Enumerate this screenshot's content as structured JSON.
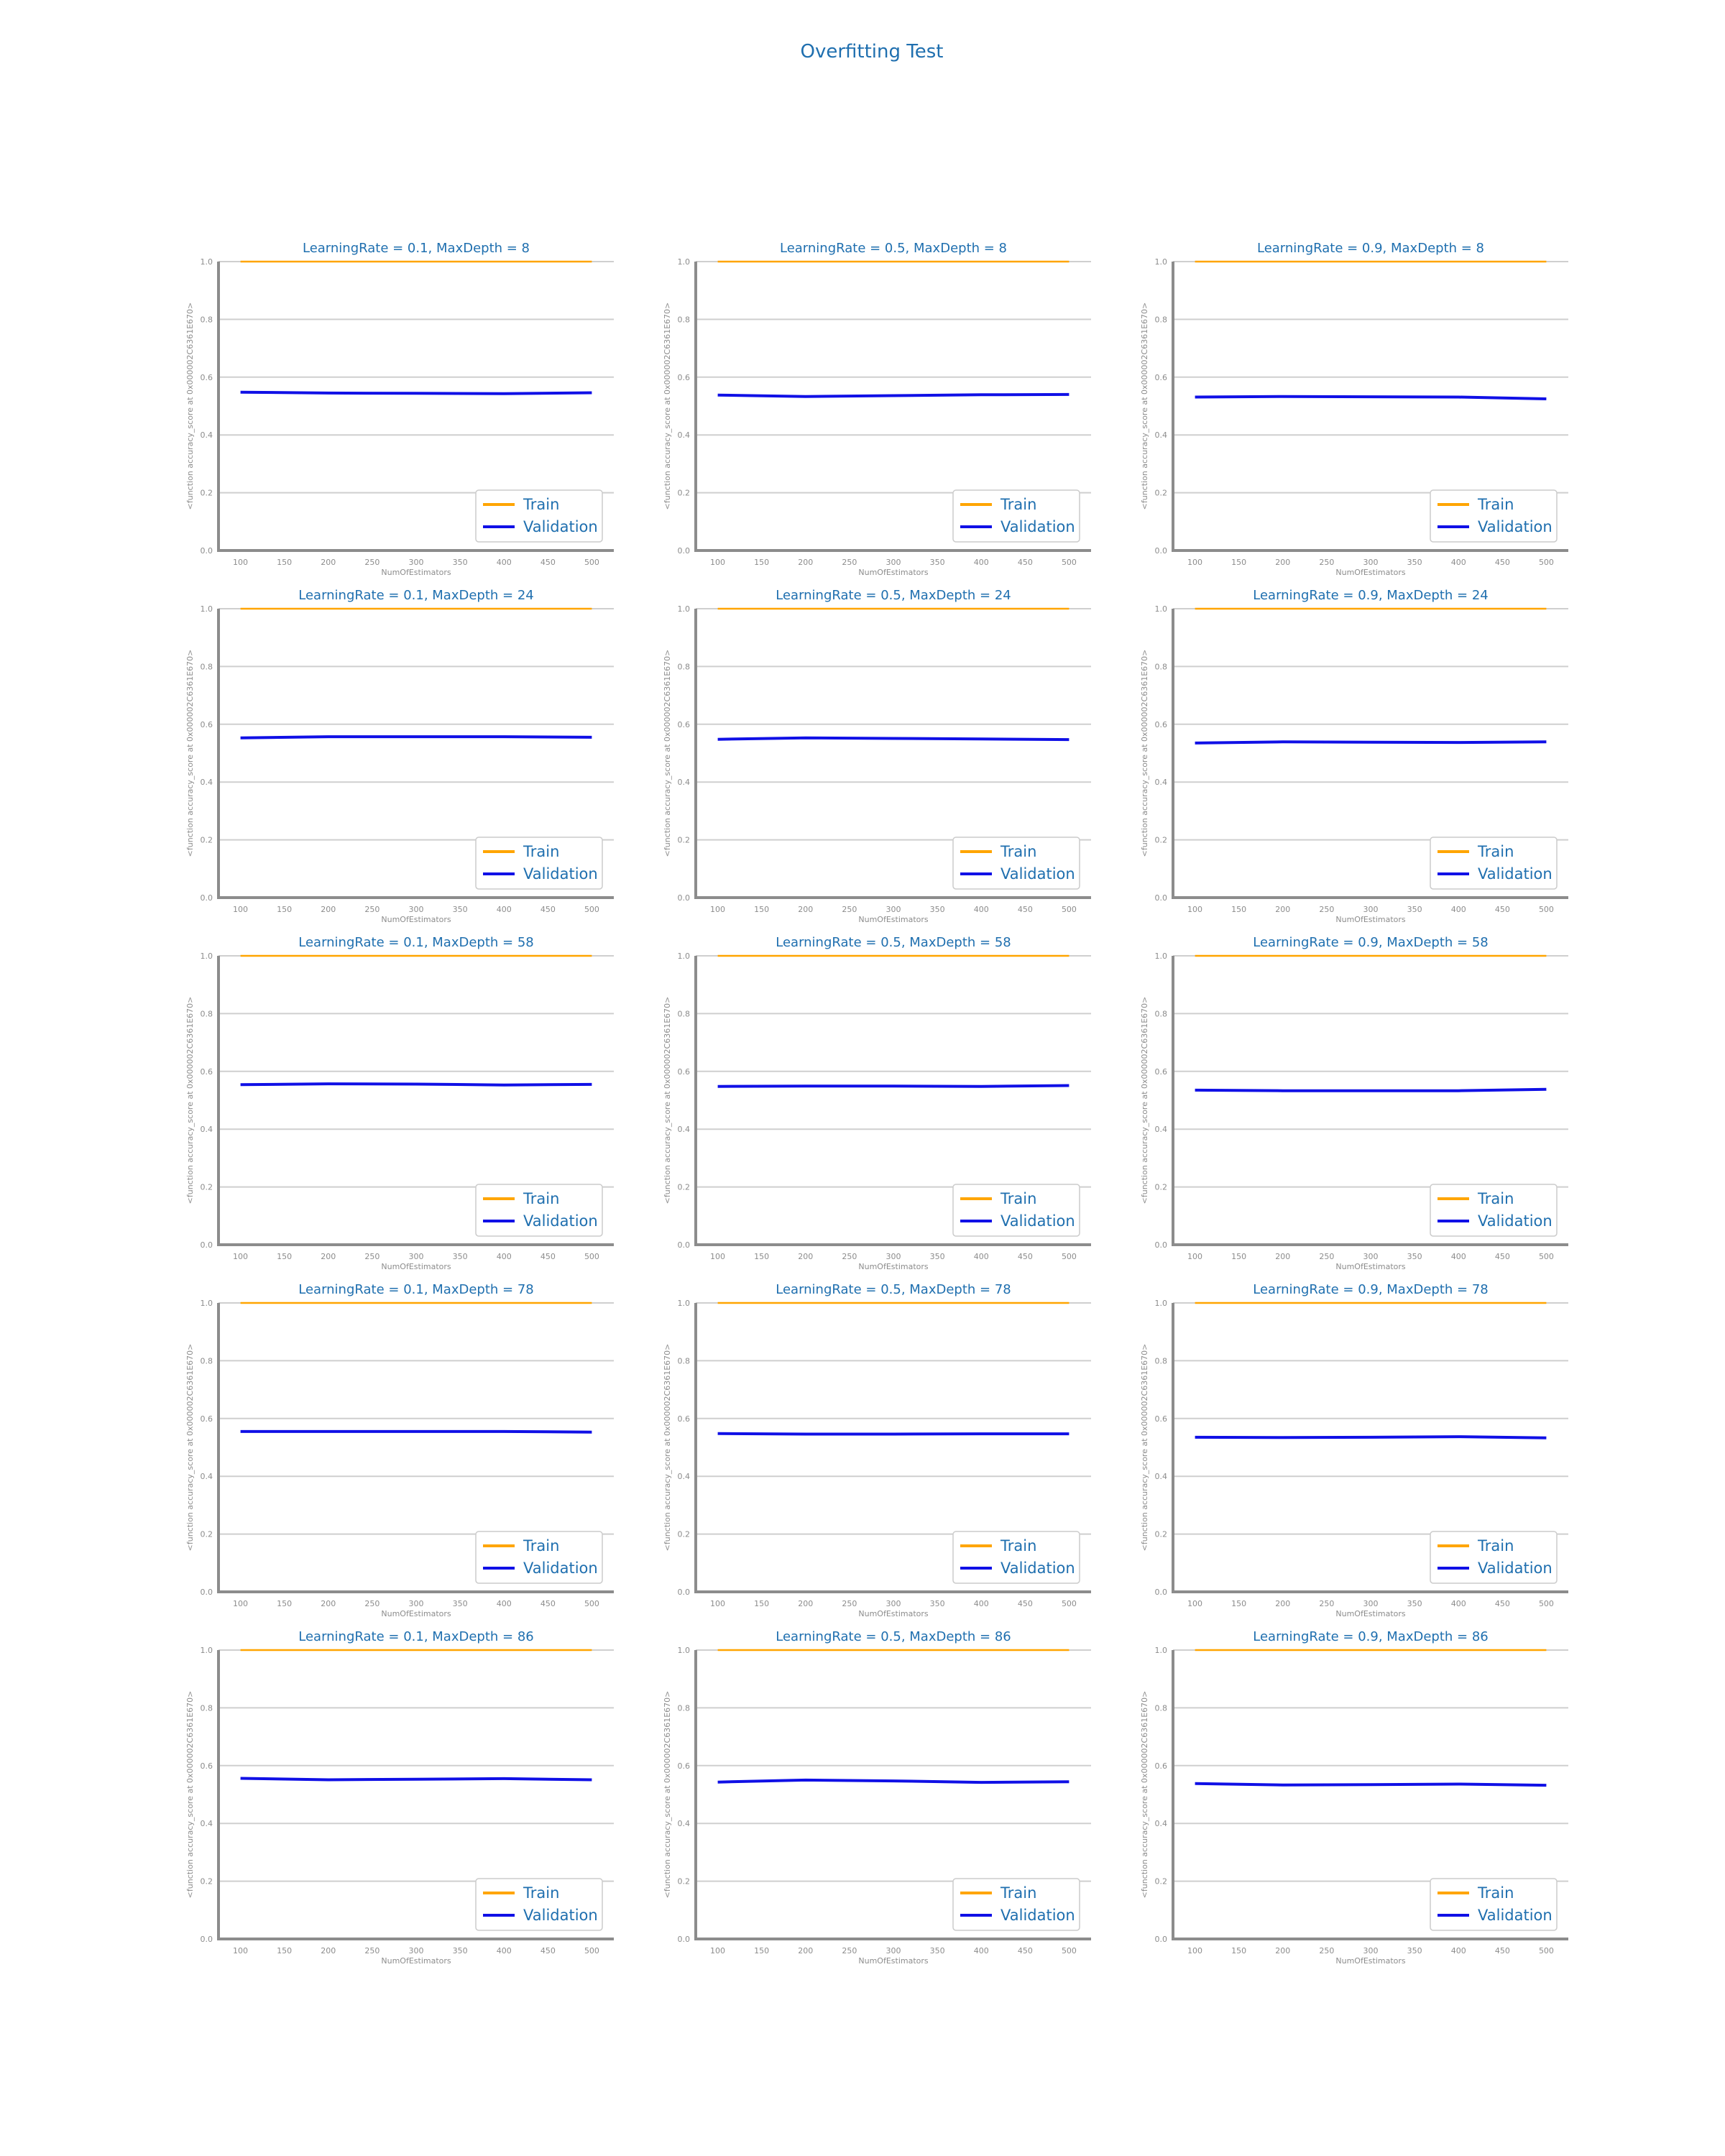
{
  "figure": {
    "suptitle": "Overfitting Test"
  },
  "colors": {
    "train": "#ffa500",
    "validation": "#1010e6",
    "title_text": "#1f6faf",
    "axis": "#8c8c8c",
    "grid": "#cfcfcf"
  },
  "chart_data": [
    {
      "type": "line",
      "title": "LearningRate = 0.1, MaxDepth = 8",
      "xlabel": "NumOfEstimators",
      "ylabel": "<function accuracy_score at 0x000002C6361E670>",
      "x": [
        100,
        200,
        300,
        400,
        500
      ],
      "xticks": [
        100,
        150,
        200,
        250,
        300,
        350,
        400,
        450,
        500
      ],
      "yticks": [
        0.0,
        0.2,
        0.4,
        0.6,
        0.8,
        1.0
      ],
      "ylim": [
        0,
        1
      ],
      "grid": true,
      "legend": "lower-right",
      "series": [
        {
          "name": "Train",
          "color": "#ffa500",
          "values": [
            1.0,
            1.0,
            1.0,
            1.0,
            1.0
          ]
        },
        {
          "name": "Validation",
          "color": "#1010e6",
          "values": [
            0.548,
            0.545,
            0.544,
            0.543,
            0.546
          ]
        }
      ]
    },
    {
      "type": "line",
      "title": "LearningRate = 0.5, MaxDepth = 8",
      "xlabel": "NumOfEstimators",
      "ylabel": "<function accuracy_score at 0x000002C6361E670>",
      "x": [
        100,
        200,
        300,
        400,
        500
      ],
      "xticks": [
        100,
        150,
        200,
        250,
        300,
        350,
        400,
        450,
        500
      ],
      "yticks": [
        0.0,
        0.2,
        0.4,
        0.6,
        0.8,
        1.0
      ],
      "ylim": [
        0,
        1
      ],
      "grid": true,
      "legend": "lower-right",
      "series": [
        {
          "name": "Train",
          "color": "#ffa500",
          "values": [
            1.0,
            1.0,
            1.0,
            1.0,
            1.0
          ]
        },
        {
          "name": "Validation",
          "color": "#1010e6",
          "values": [
            0.538,
            0.533,
            0.536,
            0.539,
            0.54
          ]
        }
      ]
    },
    {
      "type": "line",
      "title": "LearningRate = 0.9, MaxDepth = 8",
      "xlabel": "NumOfEstimators",
      "ylabel": "<function accuracy_score at 0x000002C6361E670>",
      "x": [
        100,
        200,
        300,
        400,
        500
      ],
      "xticks": [
        100,
        150,
        200,
        250,
        300,
        350,
        400,
        450,
        500
      ],
      "yticks": [
        0.0,
        0.2,
        0.4,
        0.6,
        0.8,
        1.0
      ],
      "ylim": [
        0,
        1
      ],
      "grid": true,
      "legend": "lower-right",
      "series": [
        {
          "name": "Train",
          "color": "#ffa500",
          "values": [
            1.0,
            1.0,
            1.0,
            1.0,
            1.0
          ]
        },
        {
          "name": "Validation",
          "color": "#1010e6",
          "values": [
            0.531,
            0.533,
            0.532,
            0.531,
            0.525
          ]
        }
      ]
    },
    {
      "type": "line",
      "title": "LearningRate = 0.1, MaxDepth = 24",
      "xlabel": "NumOfEstimators",
      "ylabel": "<function accuracy_score at 0x000002C6361E670>",
      "x": [
        100,
        200,
        300,
        400,
        500
      ],
      "xticks": [
        100,
        150,
        200,
        250,
        300,
        350,
        400,
        450,
        500
      ],
      "yticks": [
        0.0,
        0.2,
        0.4,
        0.6,
        0.8,
        1.0
      ],
      "ylim": [
        0,
        1
      ],
      "grid": true,
      "legend": "lower-right",
      "series": [
        {
          "name": "Train",
          "color": "#ffa500",
          "values": [
            1.0,
            1.0,
            1.0,
            1.0,
            1.0
          ]
        },
        {
          "name": "Validation",
          "color": "#1010e6",
          "values": [
            0.553,
            0.557,
            0.557,
            0.557,
            0.555
          ]
        }
      ]
    },
    {
      "type": "line",
      "title": "LearningRate = 0.5, MaxDepth = 24",
      "xlabel": "NumOfEstimators",
      "ylabel": "<function accuracy_score at 0x000002C6361E670>",
      "x": [
        100,
        200,
        300,
        400,
        500
      ],
      "xticks": [
        100,
        150,
        200,
        250,
        300,
        350,
        400,
        450,
        500
      ],
      "yticks": [
        0.0,
        0.2,
        0.4,
        0.6,
        0.8,
        1.0
      ],
      "ylim": [
        0,
        1
      ],
      "grid": true,
      "legend": "lower-right",
      "series": [
        {
          "name": "Train",
          "color": "#ffa500",
          "values": [
            1.0,
            1.0,
            1.0,
            1.0,
            1.0
          ]
        },
        {
          "name": "Validation",
          "color": "#1010e6",
          "values": [
            0.548,
            0.553,
            0.551,
            0.549,
            0.547
          ]
        }
      ]
    },
    {
      "type": "line",
      "title": "LearningRate = 0.9, MaxDepth = 24",
      "xlabel": "NumOfEstimators",
      "ylabel": "<function accuracy_score at 0x000002C6361E670>",
      "x": [
        100,
        200,
        300,
        400,
        500
      ],
      "xticks": [
        100,
        150,
        200,
        250,
        300,
        350,
        400,
        450,
        500
      ],
      "yticks": [
        0.0,
        0.2,
        0.4,
        0.6,
        0.8,
        1.0
      ],
      "ylim": [
        0,
        1
      ],
      "grid": true,
      "legend": "lower-right",
      "series": [
        {
          "name": "Train",
          "color": "#ffa500",
          "values": [
            1.0,
            1.0,
            1.0,
            1.0,
            1.0
          ]
        },
        {
          "name": "Validation",
          "color": "#1010e6",
          "values": [
            0.535,
            0.539,
            0.538,
            0.537,
            0.539
          ]
        }
      ]
    },
    {
      "type": "line",
      "title": "LearningRate = 0.1, MaxDepth = 58",
      "xlabel": "NumOfEstimators",
      "ylabel": "<function accuracy_score at 0x000002C6361E670>",
      "x": [
        100,
        200,
        300,
        400,
        500
      ],
      "xticks": [
        100,
        150,
        200,
        250,
        300,
        350,
        400,
        450,
        500
      ],
      "yticks": [
        0.0,
        0.2,
        0.4,
        0.6,
        0.8,
        1.0
      ],
      "ylim": [
        0,
        1
      ],
      "grid": true,
      "legend": "lower-right",
      "series": [
        {
          "name": "Train",
          "color": "#ffa500",
          "values": [
            1.0,
            1.0,
            1.0,
            1.0,
            1.0
          ]
        },
        {
          "name": "Validation",
          "color": "#1010e6",
          "values": [
            0.554,
            0.557,
            0.556,
            0.553,
            0.555
          ]
        }
      ]
    },
    {
      "type": "line",
      "title": "LearningRate = 0.5, MaxDepth = 58",
      "xlabel": "NumOfEstimators",
      "ylabel": "<function accuracy_score at 0x000002C6361E670>",
      "x": [
        100,
        200,
        300,
        400,
        500
      ],
      "xticks": [
        100,
        150,
        200,
        250,
        300,
        350,
        400,
        450,
        500
      ],
      "yticks": [
        0.0,
        0.2,
        0.4,
        0.6,
        0.8,
        1.0
      ],
      "ylim": [
        0,
        1
      ],
      "grid": true,
      "legend": "lower-right",
      "series": [
        {
          "name": "Train",
          "color": "#ffa500",
          "values": [
            1.0,
            1.0,
            1.0,
            1.0,
            1.0
          ]
        },
        {
          "name": "Validation",
          "color": "#1010e6",
          "values": [
            0.548,
            0.549,
            0.549,
            0.548,
            0.551
          ]
        }
      ]
    },
    {
      "type": "line",
      "title": "LearningRate = 0.9, MaxDepth = 58",
      "xlabel": "NumOfEstimators",
      "ylabel": "<function accuracy_score at 0x000002C6361E670>",
      "x": [
        100,
        200,
        300,
        400,
        500
      ],
      "xticks": [
        100,
        150,
        200,
        250,
        300,
        350,
        400,
        450,
        500
      ],
      "yticks": [
        0.0,
        0.2,
        0.4,
        0.6,
        0.8,
        1.0
      ],
      "ylim": [
        0,
        1
      ],
      "grid": true,
      "legend": "lower-right",
      "series": [
        {
          "name": "Train",
          "color": "#ffa500",
          "values": [
            1.0,
            1.0,
            1.0,
            1.0,
            1.0
          ]
        },
        {
          "name": "Validation",
          "color": "#1010e6",
          "values": [
            0.535,
            0.533,
            0.533,
            0.533,
            0.538
          ]
        }
      ]
    },
    {
      "type": "line",
      "title": "LearningRate = 0.1, MaxDepth = 78",
      "xlabel": "NumOfEstimators",
      "ylabel": "<function accuracy_score at 0x000002C6361E670>",
      "x": [
        100,
        200,
        300,
        400,
        500
      ],
      "xticks": [
        100,
        150,
        200,
        250,
        300,
        350,
        400,
        450,
        500
      ],
      "yticks": [
        0.0,
        0.2,
        0.4,
        0.6,
        0.8,
        1.0
      ],
      "ylim": [
        0,
        1
      ],
      "grid": true,
      "legend": "lower-right",
      "series": [
        {
          "name": "Train",
          "color": "#ffa500",
          "values": [
            1.0,
            1.0,
            1.0,
            1.0,
            1.0
          ]
        },
        {
          "name": "Validation",
          "color": "#1010e6",
          "values": [
            0.555,
            0.555,
            0.555,
            0.555,
            0.553
          ]
        }
      ]
    },
    {
      "type": "line",
      "title": "LearningRate = 0.5, MaxDepth = 78",
      "xlabel": "NumOfEstimators",
      "ylabel": "<function accuracy_score at 0x000002C6361E670>",
      "x": [
        100,
        200,
        300,
        400,
        500
      ],
      "xticks": [
        100,
        150,
        200,
        250,
        300,
        350,
        400,
        450,
        500
      ],
      "yticks": [
        0.0,
        0.2,
        0.4,
        0.6,
        0.8,
        1.0
      ],
      "ylim": [
        0,
        1
      ],
      "grid": true,
      "legend": "lower-right",
      "series": [
        {
          "name": "Train",
          "color": "#ffa500",
          "values": [
            1.0,
            1.0,
            1.0,
            1.0,
            1.0
          ]
        },
        {
          "name": "Validation",
          "color": "#1010e6",
          "values": [
            0.548,
            0.546,
            0.546,
            0.547,
            0.547
          ]
        }
      ]
    },
    {
      "type": "line",
      "title": "LearningRate = 0.9, MaxDepth = 78",
      "xlabel": "NumOfEstimators",
      "ylabel": "<function accuracy_score at 0x000002C6361E670>",
      "x": [
        100,
        200,
        300,
        400,
        500
      ],
      "xticks": [
        100,
        150,
        200,
        250,
        300,
        350,
        400,
        450,
        500
      ],
      "yticks": [
        0.0,
        0.2,
        0.4,
        0.6,
        0.8,
        1.0
      ],
      "ylim": [
        0,
        1
      ],
      "grid": true,
      "legend": "lower-right",
      "series": [
        {
          "name": "Train",
          "color": "#ffa500",
          "values": [
            1.0,
            1.0,
            1.0,
            1.0,
            1.0
          ]
        },
        {
          "name": "Validation",
          "color": "#1010e6",
          "values": [
            0.535,
            0.534,
            0.535,
            0.537,
            0.533
          ]
        }
      ]
    },
    {
      "type": "line",
      "title": "LearningRate = 0.1, MaxDepth = 86",
      "xlabel": "NumOfEstimators",
      "ylabel": "<function accuracy_score at 0x000002C6361E670>",
      "x": [
        100,
        200,
        300,
        400,
        500
      ],
      "xticks": [
        100,
        150,
        200,
        250,
        300,
        350,
        400,
        450,
        500
      ],
      "yticks": [
        0.0,
        0.2,
        0.4,
        0.6,
        0.8,
        1.0
      ],
      "ylim": [
        0,
        1
      ],
      "grid": true,
      "legend": "lower-right",
      "series": [
        {
          "name": "Train",
          "color": "#ffa500",
          "values": [
            1.0,
            1.0,
            1.0,
            1.0,
            1.0
          ]
        },
        {
          "name": "Validation",
          "color": "#1010e6",
          "values": [
            0.556,
            0.551,
            0.553,
            0.555,
            0.551
          ]
        }
      ]
    },
    {
      "type": "line",
      "title": "LearningRate = 0.5, MaxDepth = 86",
      "xlabel": "NumOfEstimators",
      "ylabel": "<function accuracy_score at 0x000002C6361E670>",
      "x": [
        100,
        200,
        300,
        400,
        500
      ],
      "xticks": [
        100,
        150,
        200,
        250,
        300,
        350,
        400,
        450,
        500
      ],
      "yticks": [
        0.0,
        0.2,
        0.4,
        0.6,
        0.8,
        1.0
      ],
      "ylim": [
        0,
        1
      ],
      "grid": true,
      "legend": "lower-right",
      "series": [
        {
          "name": "Train",
          "color": "#ffa500",
          "values": [
            1.0,
            1.0,
            1.0,
            1.0,
            1.0
          ]
        },
        {
          "name": "Validation",
          "color": "#1010e6",
          "values": [
            0.543,
            0.55,
            0.547,
            0.542,
            0.544
          ]
        }
      ]
    },
    {
      "type": "line",
      "title": "LearningRate = 0.9, MaxDepth = 86",
      "xlabel": "NumOfEstimators",
      "ylabel": "<function accuracy_score at 0x000002C6361E670>",
      "x": [
        100,
        200,
        300,
        400,
        500
      ],
      "xticks": [
        100,
        150,
        200,
        250,
        300,
        350,
        400,
        450,
        500
      ],
      "yticks": [
        0.0,
        0.2,
        0.4,
        0.6,
        0.8,
        1.0
      ],
      "ylim": [
        0,
        1
      ],
      "grid": true,
      "legend": "lower-right",
      "series": [
        {
          "name": "Train",
          "color": "#ffa500",
          "values": [
            1.0,
            1.0,
            1.0,
            1.0,
            1.0
          ]
        },
        {
          "name": "Validation",
          "color": "#1010e6",
          "values": [
            0.538,
            0.533,
            0.534,
            0.536,
            0.532
          ]
        }
      ]
    }
  ]
}
